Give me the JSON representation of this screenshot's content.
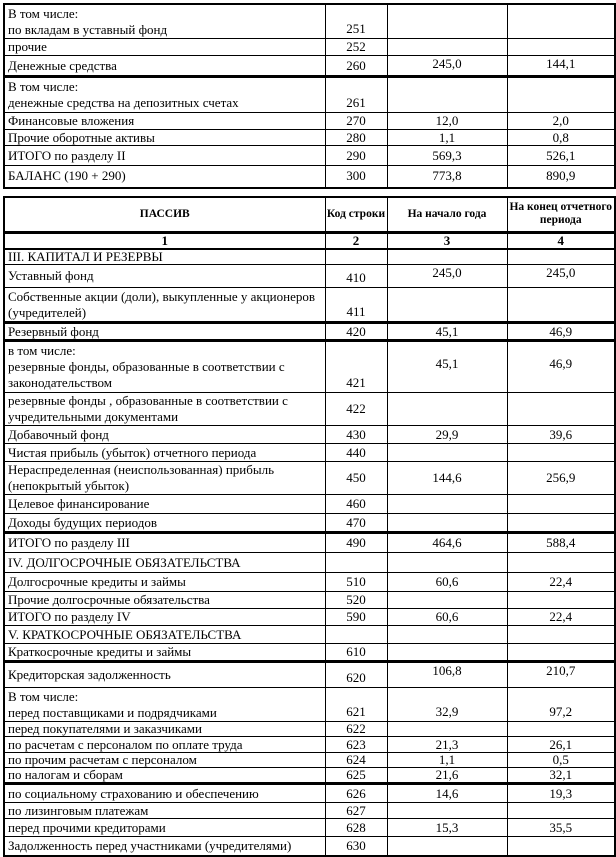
{
  "assets_table": {
    "rows": [
      {
        "label": [
          "В том числе:",
          "по вкладам в уставный фонд"
        ],
        "code": "251",
        "begin": "",
        "end": ""
      },
      {
        "label": [
          "прочие"
        ],
        "code": "252",
        "begin": "",
        "end": ""
      },
      {
        "label": [
          "Денежные средства"
        ],
        "code": "260",
        "begin": "245,0",
        "end": "144,1"
      },
      {
        "label": [
          "В том числе:",
          "денежные средства на депозитных счетах"
        ],
        "code": "261",
        "begin": "",
        "end": ""
      },
      {
        "label": [
          "Финансовые вложения"
        ],
        "code": "270",
        "begin": "12,0",
        "end": "2,0"
      },
      {
        "label": [
          "Прочие оборотные активы"
        ],
        "code": "280",
        "begin": "1,1",
        "end": "0,8"
      },
      {
        "label": [
          "ИТОГО по разделу II"
        ],
        "code": "290",
        "begin": "569,3",
        "end": "526,1"
      },
      {
        "label": [
          "БАЛАНС (190 + 290)"
        ],
        "code": "300",
        "begin": "773,8",
        "end": "890,9"
      }
    ]
  },
  "liabilities_table": {
    "header": {
      "name": "ПАССИВ",
      "code": "Код строки",
      "begin": "На начало года",
      "end": "На конец отчетного периода"
    },
    "column_numbers": [
      "1",
      "2",
      "3",
      "4"
    ],
    "rows": [
      {
        "label": [
          "III. КАПИТАЛ И РЕЗЕРВЫ"
        ],
        "code": "",
        "begin": "",
        "end": ""
      },
      {
        "label": [
          "Уставный фонд"
        ],
        "code": "410",
        "begin": "245,0",
        "end": "245,0"
      },
      {
        "label": [
          "Собственные акции (доли), выкупленные у акционеров",
          "(учредителей)"
        ],
        "code": "411",
        "begin": "",
        "end": ""
      },
      {
        "label": [
          "Резервный фонд"
        ],
        "code": "420",
        "begin": "45,1",
        "end": "46,9"
      },
      {
        "label": [
          "в том числе:",
          "резервные фонды, образованные в соответствии с",
          "законодательством"
        ],
        "code": "421",
        "begin": "45,1",
        "end": "46,9"
      },
      {
        "label": [
          "резервные фонды , образованные в соответствии с",
          "учредительными  документами"
        ],
        "code": "422",
        "begin": "",
        "end": ""
      },
      {
        "label": [
          "Добавочный фонд"
        ],
        "code": "430",
        "begin": "29,9",
        "end": "39,6"
      },
      {
        "label": [
          "Чистая прибыль (убыток) отчетного периода"
        ],
        "code": "440",
        "begin": "",
        "end": ""
      },
      {
        "label": [
          "Нераспределенная (неиспользованная)  прибыль",
          "(непокрытый убыток)"
        ],
        "code": "450",
        "begin": "144,6",
        "end": "256,9"
      },
      {
        "label": [
          "Целевое финансирование"
        ],
        "code": "460",
        "begin": "",
        "end": ""
      },
      {
        "label": [
          "Доходы будущих периодов"
        ],
        "code": "470",
        "begin": "",
        "end": ""
      },
      {
        "label": [
          "ИТОГО по разделу III"
        ],
        "code": "490",
        "begin": "464,6",
        "end": "588,4"
      },
      {
        "label": [
          "IV.  ДОЛГОСРОЧНЫЕ ОБЯЗАТЕЛЬСТВА"
        ],
        "code": "",
        "begin": "",
        "end": ""
      },
      {
        "label": [
          "Долгосрочные кредиты и займы"
        ],
        "code": "510",
        "begin": "60,6",
        "end": "22,4"
      },
      {
        "label": [
          "Прочие долгосрочные обязательства"
        ],
        "code": "520",
        "begin": "",
        "end": ""
      },
      {
        "label": [
          "ИТОГО по разделу IV"
        ],
        "code": "590",
        "begin": "60,6",
        "end": "22,4"
      },
      {
        "label": [
          "V. КРАТКОСРОЧНЫЕ ОБЯЗАТЕЛЬСТВА"
        ],
        "code": "",
        "begin": "",
        "end": ""
      },
      {
        "label": [
          "Краткосрочные кредиты и займы"
        ],
        "code": "610",
        "begin": "",
        "end": ""
      },
      {
        "label": [
          "Кредиторская задолженность"
        ],
        "code": "620",
        "begin": "106,8",
        "end": "210,7"
      },
      {
        "label": [
          "В том числе:",
          "перед поставщиками и подрядчиками"
        ],
        "code": "621",
        "begin": "32,9",
        "end": "97,2"
      },
      {
        "label": [
          "перед покупателями и заказчиками"
        ],
        "code": "622",
        "begin": "",
        "end": ""
      },
      {
        "label": [
          "по расчетам с персоналом по оплате труда"
        ],
        "code": "623",
        "begin": "21,3",
        "end": "26,1"
      },
      {
        "label": [
          "по прочим расчетам с персоналом"
        ],
        "code": "624",
        "begin": "1,1",
        "end": "0,5"
      },
      {
        "label": [
          "по налогам и сборам"
        ],
        "code": "625",
        "begin": "21,6",
        "end": "32,1"
      },
      {
        "label": [
          "по социальному страхованию и обеспечению"
        ],
        "code": "626",
        "begin": "14,6",
        "end": "19,3"
      },
      {
        "label": [
          "по лизинговым платежам"
        ],
        "code": "627",
        "begin": "",
        "end": ""
      },
      {
        "label": [
          "перед прочими кредиторами"
        ],
        "code": "628",
        "begin": "15,3",
        "end": "35,5"
      },
      {
        "label": [
          "Задолженность перед участниками (учредителями)"
        ],
        "code": "630",
        "begin": "",
        "end": ""
      }
    ]
  }
}
